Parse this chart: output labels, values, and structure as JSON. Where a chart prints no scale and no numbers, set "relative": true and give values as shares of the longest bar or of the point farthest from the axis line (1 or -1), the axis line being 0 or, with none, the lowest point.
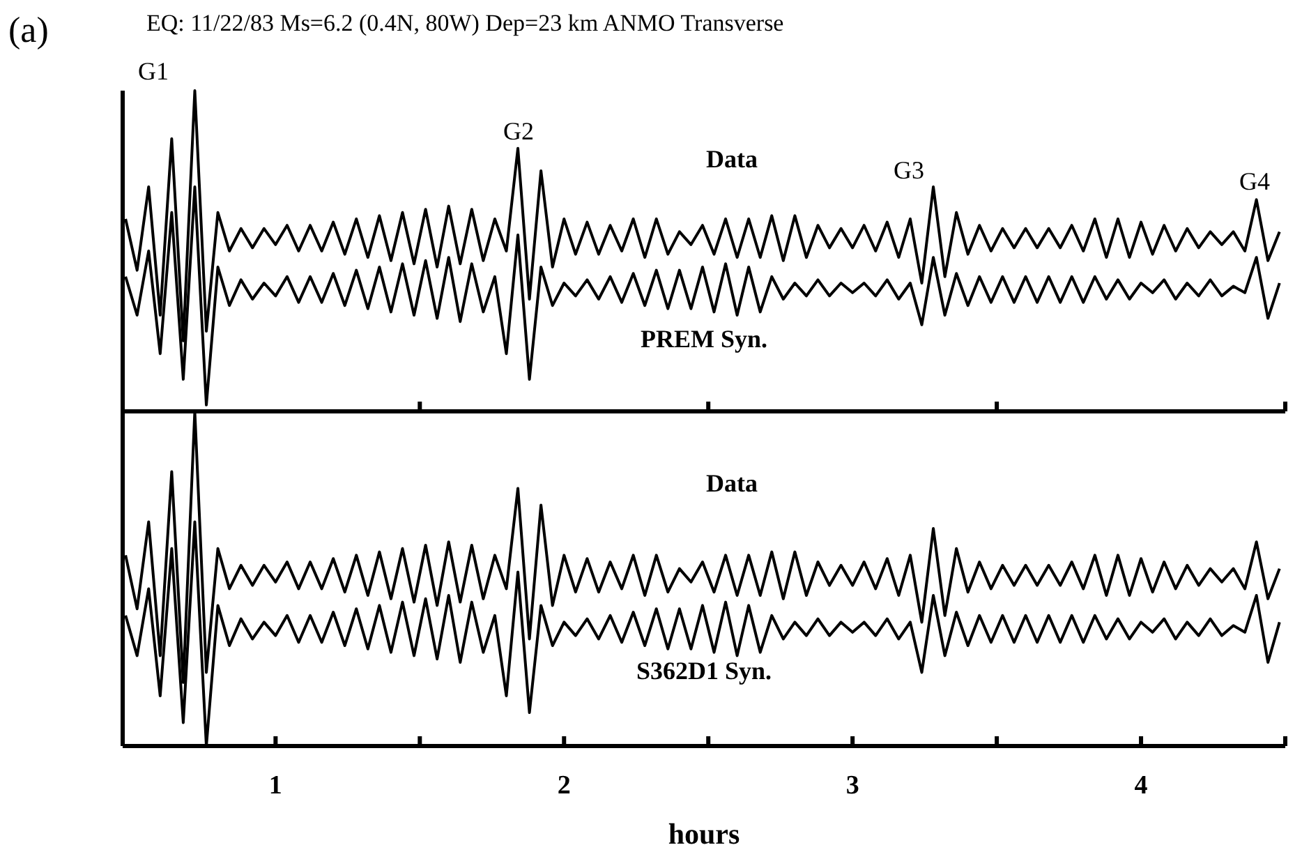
{
  "chart_data": [
    {
      "type": "line",
      "title": "EQ: 11/22/83   Ms=6.2  (0.4N, 80W)  Dep=23 km  ANMO  Transverse",
      "relative": true,
      "tick_labels": false,
      "xlim": [
        0.47,
        4.5
      ],
      "xticks": [
        {
          "value": 1.5,
          "label": null
        },
        {
          "value": 2.5,
          "label": null
        },
        {
          "value": 3.5,
          "label": null
        },
        {
          "value": 4.5,
          "label": null
        }
      ],
      "annotations": [
        "(a)",
        "G1",
        "G2",
        "G3",
        "G4"
      ],
      "x": [
        0.48,
        0.52,
        0.56,
        0.6,
        0.64,
        0.68,
        0.72,
        0.76,
        0.8,
        0.84,
        0.88,
        0.92,
        0.96,
        1.0,
        1.04,
        1.08,
        1.12,
        1.16,
        1.2,
        1.24,
        1.28,
        1.32,
        1.36,
        1.4,
        1.44,
        1.48,
        1.52,
        1.56,
        1.6,
        1.64,
        1.68,
        1.72,
        1.76,
        1.8,
        1.84,
        1.88,
        1.92,
        1.96,
        2.0,
        2.04,
        2.08,
        2.12,
        2.16,
        2.2,
        2.24,
        2.28,
        2.32,
        2.36,
        2.4,
        2.44,
        2.48,
        2.52,
        2.56,
        2.6,
        2.64,
        2.68,
        2.72,
        2.76,
        2.8,
        2.84,
        2.88,
        2.92,
        2.96,
        3.0,
        3.04,
        3.08,
        3.12,
        3.16,
        3.2,
        3.24,
        3.28,
        3.32,
        3.36,
        3.4,
        3.44,
        3.48,
        3.52,
        3.56,
        3.6,
        3.64,
        3.68,
        3.72,
        3.76,
        3.8,
        3.84,
        3.88,
        3.92,
        3.96,
        4.0,
        4.04,
        4.08,
        4.12,
        4.16,
        4.2,
        4.24,
        4.28,
        4.32,
        4.36,
        4.4,
        4.44,
        4.48
      ],
      "series": [
        {
          "name": "Data",
          "color": "#000000",
          "values": [
            0.6,
            0.44,
            0.7,
            0.3,
            0.85,
            0.22,
            1.0,
            0.25,
            0.62,
            0.5,
            0.57,
            0.51,
            0.57,
            0.52,
            0.58,
            0.5,
            0.58,
            0.5,
            0.59,
            0.49,
            0.6,
            0.48,
            0.61,
            0.47,
            0.62,
            0.46,
            0.63,
            0.45,
            0.64,
            0.46,
            0.63,
            0.47,
            0.6,
            0.5,
            0.82,
            0.35,
            0.75,
            0.45,
            0.6,
            0.49,
            0.59,
            0.49,
            0.58,
            0.5,
            0.6,
            0.48,
            0.6,
            0.49,
            0.56,
            0.52,
            0.58,
            0.49,
            0.6,
            0.48,
            0.6,
            0.48,
            0.61,
            0.47,
            0.61,
            0.48,
            0.58,
            0.51,
            0.57,
            0.51,
            0.58,
            0.5,
            0.59,
            0.48,
            0.6,
            0.4,
            0.7,
            0.42,
            0.62,
            0.49,
            0.58,
            0.5,
            0.57,
            0.51,
            0.57,
            0.51,
            0.57,
            0.51,
            0.58,
            0.5,
            0.6,
            0.48,
            0.6,
            0.48,
            0.59,
            0.49,
            0.58,
            0.5,
            0.57,
            0.51,
            0.56,
            0.52,
            0.56,
            0.5,
            0.66,
            0.47,
            0.56
          ]
        },
        {
          "name": "PREM Syn.",
          "color": "#000000",
          "values": [
            0.42,
            0.3,
            0.5,
            0.18,
            0.62,
            0.1,
            0.7,
            0.02,
            0.45,
            0.33,
            0.41,
            0.35,
            0.4,
            0.36,
            0.42,
            0.34,
            0.42,
            0.34,
            0.43,
            0.33,
            0.44,
            0.32,
            0.45,
            0.31,
            0.46,
            0.3,
            0.47,
            0.29,
            0.48,
            0.28,
            0.46,
            0.31,
            0.42,
            0.18,
            0.55,
            0.1,
            0.45,
            0.33,
            0.4,
            0.36,
            0.41,
            0.35,
            0.42,
            0.34,
            0.43,
            0.33,
            0.44,
            0.32,
            0.44,
            0.32,
            0.45,
            0.31,
            0.46,
            0.3,
            0.45,
            0.31,
            0.42,
            0.35,
            0.4,
            0.36,
            0.41,
            0.36,
            0.4,
            0.37,
            0.4,
            0.36,
            0.41,
            0.35,
            0.4,
            0.27,
            0.48,
            0.3,
            0.43,
            0.33,
            0.42,
            0.34,
            0.42,
            0.34,
            0.42,
            0.34,
            0.42,
            0.34,
            0.42,
            0.34,
            0.42,
            0.35,
            0.41,
            0.35,
            0.4,
            0.37,
            0.41,
            0.35,
            0.4,
            0.36,
            0.41,
            0.36,
            0.39,
            0.37,
            0.48,
            0.29,
            0.4
          ]
        }
      ]
    },
    {
      "type": "line",
      "xlabel": "hours",
      "relative": true,
      "tick_labels": "x",
      "xlim": [
        0.47,
        4.5
      ],
      "xticks": [
        1,
        {
          "value": 1.5,
          "label": null
        },
        2,
        {
          "value": 2.5,
          "label": null
        },
        3,
        {
          "value": 3.5,
          "label": null
        },
        4,
        {
          "value": 4.5,
          "label": null
        }
      ],
      "x": [
        0.48,
        0.52,
        0.56,
        0.6,
        0.64,
        0.68,
        0.72,
        0.76,
        0.8,
        0.84,
        0.88,
        0.92,
        0.96,
        1.0,
        1.04,
        1.08,
        1.12,
        1.16,
        1.2,
        1.24,
        1.28,
        1.32,
        1.36,
        1.4,
        1.44,
        1.48,
        1.52,
        1.56,
        1.6,
        1.64,
        1.68,
        1.72,
        1.76,
        1.8,
        1.84,
        1.88,
        1.92,
        1.96,
        2.0,
        2.04,
        2.08,
        2.12,
        2.16,
        2.2,
        2.24,
        2.28,
        2.32,
        2.36,
        2.4,
        2.44,
        2.48,
        2.52,
        2.56,
        2.6,
        2.64,
        2.68,
        2.72,
        2.76,
        2.8,
        2.84,
        2.88,
        2.92,
        2.96,
        3.0,
        3.04,
        3.08,
        3.12,
        3.16,
        3.2,
        3.24,
        3.28,
        3.32,
        3.36,
        3.4,
        3.44,
        3.48,
        3.52,
        3.56,
        3.6,
        3.64,
        3.68,
        3.72,
        3.76,
        3.8,
        3.84,
        3.88,
        3.92,
        3.96,
        4.0,
        4.04,
        4.08,
        4.12,
        4.16,
        4.2,
        4.24,
        4.28,
        4.32,
        4.36,
        4.4,
        4.44,
        4.48
      ],
      "series": [
        {
          "name": "Data",
          "color": "#000000",
          "values": [
            0.57,
            0.41,
            0.67,
            0.27,
            0.82,
            0.19,
            1.0,
            0.22,
            0.59,
            0.47,
            0.54,
            0.48,
            0.54,
            0.49,
            0.55,
            0.47,
            0.55,
            0.47,
            0.56,
            0.46,
            0.57,
            0.45,
            0.58,
            0.44,
            0.59,
            0.43,
            0.6,
            0.42,
            0.61,
            0.43,
            0.6,
            0.44,
            0.57,
            0.47,
            0.77,
            0.32,
            0.72,
            0.42,
            0.57,
            0.46,
            0.56,
            0.46,
            0.55,
            0.47,
            0.57,
            0.45,
            0.57,
            0.46,
            0.53,
            0.49,
            0.55,
            0.46,
            0.57,
            0.45,
            0.57,
            0.45,
            0.58,
            0.44,
            0.58,
            0.45,
            0.55,
            0.48,
            0.54,
            0.48,
            0.55,
            0.47,
            0.56,
            0.45,
            0.57,
            0.37,
            0.65,
            0.39,
            0.59,
            0.46,
            0.55,
            0.47,
            0.54,
            0.48,
            0.54,
            0.48,
            0.54,
            0.48,
            0.55,
            0.47,
            0.57,
            0.45,
            0.57,
            0.45,
            0.56,
            0.46,
            0.55,
            0.47,
            0.54,
            0.48,
            0.53,
            0.49,
            0.53,
            0.47,
            0.61,
            0.44,
            0.53
          ]
        },
        {
          "name": "S362D1 Syn.",
          "color": "#000000",
          "values": [
            0.39,
            0.27,
            0.47,
            0.15,
            0.59,
            0.07,
            0.67,
            0.0,
            0.42,
            0.3,
            0.38,
            0.32,
            0.37,
            0.33,
            0.39,
            0.31,
            0.39,
            0.31,
            0.4,
            0.3,
            0.41,
            0.29,
            0.42,
            0.28,
            0.43,
            0.27,
            0.44,
            0.26,
            0.45,
            0.25,
            0.43,
            0.28,
            0.39,
            0.15,
            0.52,
            0.1,
            0.42,
            0.3,
            0.37,
            0.33,
            0.38,
            0.32,
            0.39,
            0.31,
            0.4,
            0.3,
            0.41,
            0.29,
            0.41,
            0.29,
            0.42,
            0.28,
            0.43,
            0.27,
            0.42,
            0.28,
            0.39,
            0.32,
            0.37,
            0.33,
            0.38,
            0.33,
            0.37,
            0.34,
            0.37,
            0.33,
            0.38,
            0.32,
            0.37,
            0.22,
            0.45,
            0.27,
            0.4,
            0.3,
            0.39,
            0.31,
            0.39,
            0.31,
            0.39,
            0.31,
            0.39,
            0.31,
            0.39,
            0.31,
            0.39,
            0.32,
            0.38,
            0.32,
            0.37,
            0.34,
            0.38,
            0.32,
            0.37,
            0.33,
            0.38,
            0.33,
            0.36,
            0.34,
            0.45,
            0.25,
            0.37
          ]
        }
      ]
    }
  ]
}
